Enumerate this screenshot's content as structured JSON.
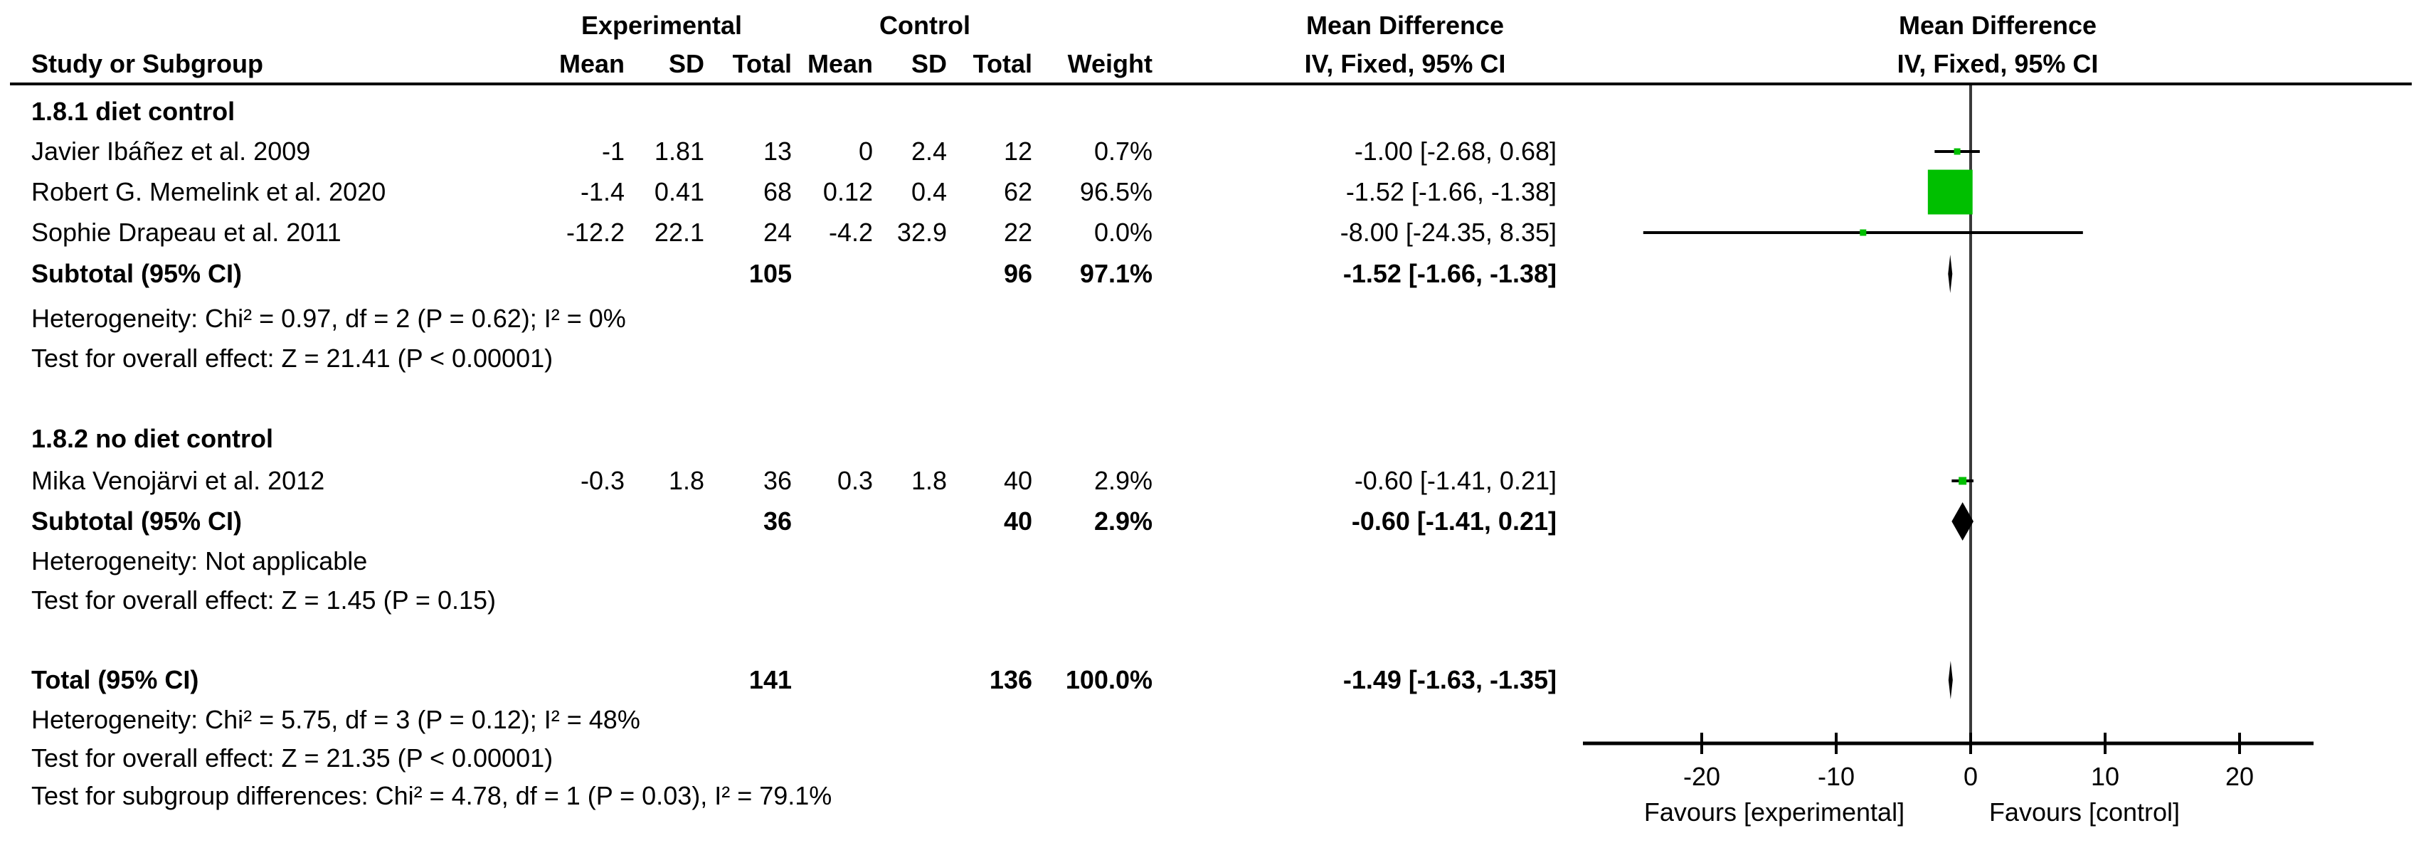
{
  "headers": {
    "study": "Study or Subgroup",
    "experimental_group": "Experimental",
    "control_group": "Control",
    "exp_mean": "Mean",
    "exp_sd": "SD",
    "exp_total": "Total",
    "ctl_mean": "Mean",
    "ctl_sd": "SD",
    "ctl_total": "Total",
    "weight": "Weight",
    "md_col_line1": "Mean Difference",
    "md_col_line2": "IV, Fixed, 95% CI",
    "plot_col_line1": "Mean Difference",
    "plot_col_line2": "IV, Fixed, 95% CI"
  },
  "chart_data": {
    "type": "forest",
    "effect_measure": "Mean Difference",
    "model": "IV, Fixed, 95% CI",
    "axis": {
      "ticks": [
        -20,
        -10,
        0,
        10,
        20
      ],
      "range": [
        -28.8,
        25.5
      ],
      "zero_line": 0,
      "grid": false
    },
    "favours_left": "Favours [experimental]",
    "favours_right": "Favours [control]",
    "marker_color": "#00BF00",
    "diamond_color": "#000000",
    "subgroups": [
      {
        "label": "1.8.1 diet control",
        "studies": [
          {
            "name": "Javier Ibáñez et al. 2009",
            "exp_mean": "-1",
            "exp_sd": "1.81",
            "exp_total": "13",
            "ctl_mean": "0",
            "ctl_sd": "2.4",
            "ctl_total": "12",
            "weight": "0.7%",
            "weight_pct": 0.7,
            "md_text": "-1.00 [-2.68, 0.68]",
            "md": -1.0,
            "ci_low": -2.68,
            "ci_high": 0.68
          },
          {
            "name": "Robert G. Memelink et al. 2020",
            "exp_mean": "-1.4",
            "exp_sd": "0.41",
            "exp_total": "68",
            "ctl_mean": "0.12",
            "ctl_sd": "0.4",
            "ctl_total": "62",
            "weight": "96.5%",
            "weight_pct": 96.5,
            "md_text": "-1.52 [-1.66, -1.38]",
            "md": -1.52,
            "ci_low": -1.66,
            "ci_high": -1.38
          },
          {
            "name": "Sophie Drapeau et al. 2011",
            "exp_mean": "-12.2",
            "exp_sd": "22.1",
            "exp_total": "24",
            "ctl_mean": "-4.2",
            "ctl_sd": "32.9",
            "ctl_total": "22",
            "weight": "0.0%",
            "weight_pct": 0.0,
            "md_text": "-8.00 [-24.35, 8.35]",
            "md": -8.0,
            "ci_low": -24.35,
            "ci_high": 8.35
          }
        ],
        "subtotal": {
          "label": "Subtotal (95% CI)",
          "exp_total": "105",
          "ctl_total": "96",
          "weight": "97.1%",
          "md_text": "-1.52 [-1.66, -1.38]",
          "md": -1.52,
          "ci_low": -1.66,
          "ci_high": -1.38
        },
        "heterogeneity": "Heterogeneity: Chi² = 0.97, df = 2 (P = 0.62); I² = 0%",
        "overall_effect": "Test for overall effect: Z = 21.41 (P < 0.00001)"
      },
      {
        "label": "1.8.2 no diet control",
        "studies": [
          {
            "name": "Mika Venojärvi et al. 2012",
            "exp_mean": "-0.3",
            "exp_sd": "1.8",
            "exp_total": "36",
            "ctl_mean": "0.3",
            "ctl_sd": "1.8",
            "ctl_total": "40",
            "weight": "2.9%",
            "weight_pct": 2.9,
            "md_text": "-0.60 [-1.41, 0.21]",
            "md": -0.6,
            "ci_low": -1.41,
            "ci_high": 0.21
          }
        ],
        "subtotal": {
          "label": "Subtotal (95% CI)",
          "exp_total": "36",
          "ctl_total": "40",
          "weight": "2.9%",
          "md_text": "-0.60 [-1.41, 0.21]",
          "md": -0.6,
          "ci_low": -1.41,
          "ci_high": 0.21
        },
        "heterogeneity": "Heterogeneity: Not applicable",
        "overall_effect": "Test for overall effect: Z = 1.45 (P = 0.15)"
      }
    ],
    "total": {
      "label": "Total (95% CI)",
      "exp_total": "141",
      "ctl_total": "136",
      "weight": "100.0%",
      "md_text": "-1.49 [-1.63, -1.35]",
      "md": -1.49,
      "ci_low": -1.63,
      "ci_high": -1.35
    },
    "total_heterogeneity": "Heterogeneity: Chi² = 5.75, df = 3 (P = 0.12); I² = 48%",
    "total_overall_effect": "Test for overall effect: Z = 21.35 (P < 0.00001)",
    "subgroup_differences": "Test for subgroup differences: Chi² = 4.78, df = 1 (P = 0.03), I² = 79.1%"
  }
}
